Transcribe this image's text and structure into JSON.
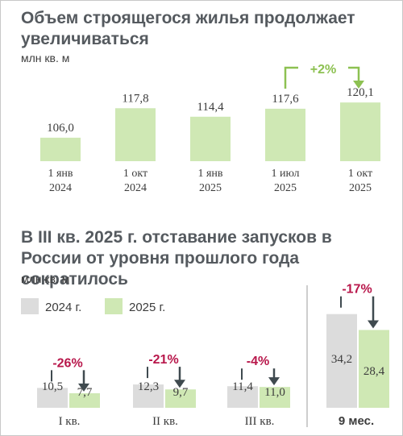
{
  "colors": {
    "green": "#cfe8b4",
    "gray": "#dcdcdc",
    "accent_green": "#8dc152",
    "accent_red": "#b8174b",
    "arrow_dark": "#3f4a4f"
  },
  "chart_data": [
    {
      "type": "bar",
      "title": "Объем строящегося жилья продолжает увеличиваться",
      "ylabel": "млн кв. м",
      "categories": [
        "1 янв\n2024",
        "1 окт\n2024",
        "1 янв\n2025",
        "1 июл\n2025",
        "1 окт\n2025"
      ],
      "values": [
        106.0,
        117.8,
        114.4,
        117.6,
        120.1
      ],
      "value_labels": [
        "106,0",
        "117,8",
        "114,4",
        "117,6",
        "120,1"
      ],
      "annotation": {
        "text": "+2%",
        "from_index": 3,
        "to_index": 4
      }
    },
    {
      "type": "bar",
      "title": "В III кв. 2025 г. отставание запусков в России от уровня прошлого года сократилось",
      "ylabel": "млн кв. м",
      "categories": [
        "I кв.",
        "II кв.",
        "III кв.",
        "9 мес."
      ],
      "series": [
        {
          "name": "2024 г.",
          "values": [
            10.5,
            12.3,
            11.4,
            34.2
          ],
          "labels": [
            "10,5",
            "12,3",
            "11,4",
            "34,2"
          ]
        },
        {
          "name": "2025 г.",
          "values": [
            7.7,
            9.7,
            11.0,
            28.4
          ],
          "labels": [
            "7,7",
            "9,7",
            "11,0",
            "28,4"
          ]
        }
      ],
      "changes": [
        "-26%",
        "-21%",
        "-4%",
        "-17%"
      ]
    }
  ]
}
